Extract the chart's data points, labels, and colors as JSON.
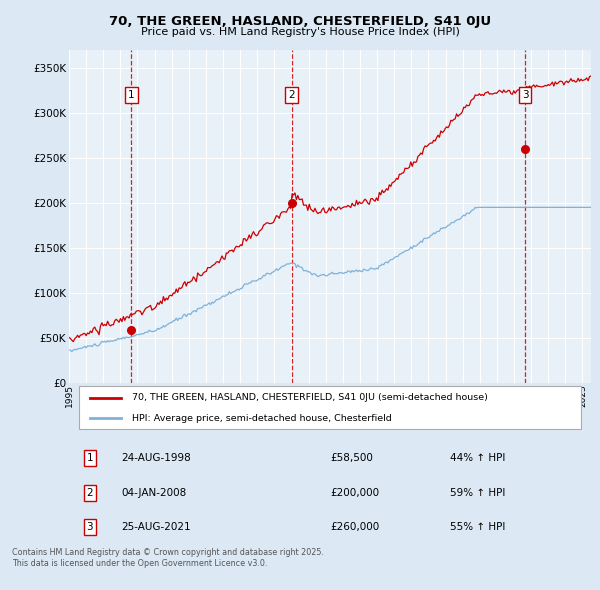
{
  "title_line1": "70, THE GREEN, HASLAND, CHESTERFIELD, S41 0JU",
  "title_line2": "Price paid vs. HM Land Registry's House Price Index (HPI)",
  "legend_label_red": "70, THE GREEN, HASLAND, CHESTERFIELD, S41 0JU (semi-detached house)",
  "legend_label_blue": "HPI: Average price, semi-detached house, Chesterfield",
  "transactions": [
    {
      "num": 1,
      "date": "24-AUG-1998",
      "price": 58500,
      "pct": "44%",
      "dir": "↑"
    },
    {
      "num": 2,
      "date": "04-JAN-2008",
      "price": 200000,
      "pct": "59%",
      "dir": "↑"
    },
    {
      "num": 3,
      "date": "25-AUG-2021",
      "price": 260000,
      "pct": "55%",
      "dir": "↑"
    }
  ],
  "transaction_years": [
    1998.646,
    2008.01,
    2021.646
  ],
  "transaction_prices": [
    58500,
    200000,
    260000
  ],
  "footnote_line1": "Contains HM Land Registry data © Crown copyright and database right 2025.",
  "footnote_line2": "This data is licensed under the Open Government Licence v3.0.",
  "ylim": [
    0,
    370000
  ],
  "xlim_start": 1995.0,
  "xlim_end": 2025.5,
  "bg_color": "#dce9f5",
  "plot_bg_color": "#e8f0f8",
  "red_color": "#cc0000",
  "blue_color": "#7fb2d8",
  "grid_color": "#ffffff",
  "label_box_color": "#ffffff",
  "label_box_edge": "#cc0000",
  "yticks": [
    0,
    50000,
    100000,
    150000,
    200000,
    250000,
    300000,
    350000
  ],
  "xtick_start": 1995,
  "xtick_end": 2026
}
